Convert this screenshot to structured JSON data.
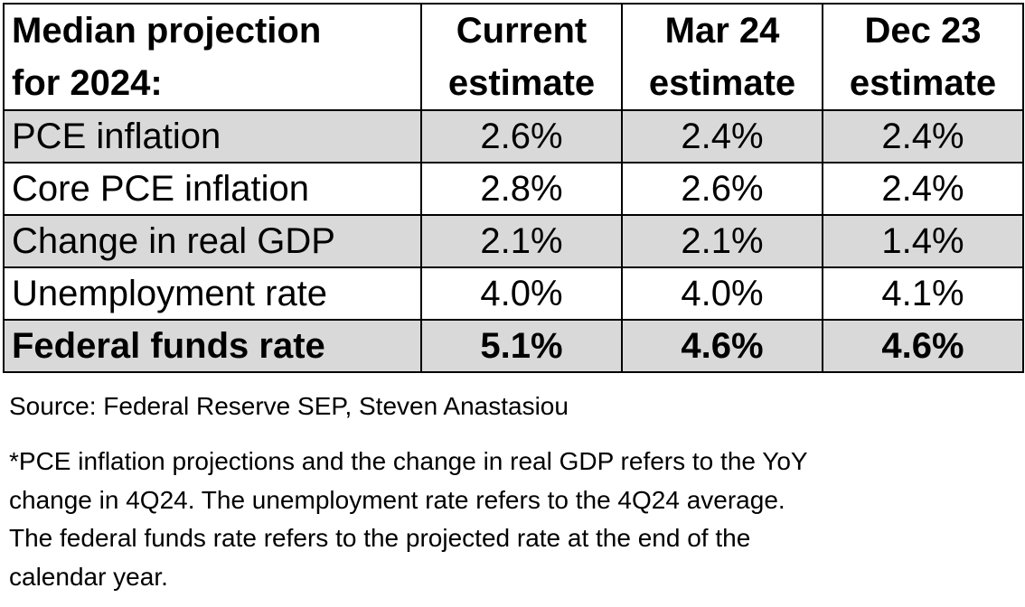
{
  "table": {
    "header": {
      "label_lines": [
        "Median projection",
        "for 2024:"
      ],
      "columns": [
        {
          "lines": [
            "Current",
            "estimate"
          ]
        },
        {
          "lines": [
            "Mar 24",
            "estimate"
          ]
        },
        {
          "lines": [
            "Dec 23",
            "estimate"
          ]
        }
      ]
    },
    "rows": [
      {
        "label": "PCE inflation",
        "values": [
          "2.6%",
          "2.4%",
          "2.4%"
        ],
        "shaded": true,
        "bold": false
      },
      {
        "label": "Core PCE inflation",
        "values": [
          "2.8%",
          "2.6%",
          "2.4%"
        ],
        "shaded": false,
        "bold": false
      },
      {
        "label": "Change in real GDP",
        "values": [
          "2.1%",
          "2.1%",
          "1.4%"
        ],
        "shaded": true,
        "bold": false
      },
      {
        "label": "Unemployment rate",
        "values": [
          "4.0%",
          "4.0%",
          "4.1%"
        ],
        "shaded": false,
        "bold": false
      },
      {
        "label": "Federal funds rate",
        "values": [
          "5.1%",
          "4.6%",
          "4.6%"
        ],
        "shaded": true,
        "bold": true
      }
    ]
  },
  "source": "Source: Federal Reserve SEP, Steven Anastasiou",
  "footnote_lines": [
    "*PCE inflation projections and the change in real GDP refers to the YoY",
    "change in 4Q24. The unemployment rate refers to the 4Q24 average.",
    "The federal funds rate refers to the projected rate at the end of the",
    "calendar year."
  ],
  "colors": {
    "shaded_row": "#d9d9d9",
    "border": "#000000",
    "text": "#000000"
  }
}
